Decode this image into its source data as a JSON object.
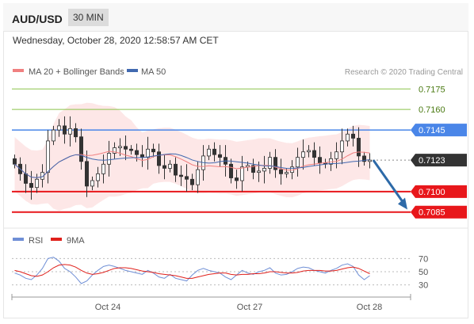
{
  "header": {
    "symbol": "AUD/USD",
    "timeframe": "30 MIN"
  },
  "datetime": "Wednesday, October 28, 2020 12:58:57 AM CET",
  "legend": {
    "ma20": "MA 20 + Bollinger Bands",
    "ma50": "MA 50"
  },
  "credit": "Research © 2020 Trading Central",
  "colors": {
    "ma20": "#f08080",
    "ma50": "#4169b0",
    "rsi": "#6f8fd6",
    "rsi_ma": "#e0201b",
    "green": "#8bc34a",
    "blue": "#4a86e8",
    "red": "#e8171b",
    "last": "#333333",
    "bands": "#fde3e3",
    "up": "#ffffff",
    "candle": "#333333",
    "arrow": "#2d6aa8"
  },
  "chart_data": {
    "type": "candlestick",
    "symbol": "AUD/USD",
    "interval": "30 MIN",
    "x_ticks": [
      "Oct 24",
      "Oct 27",
      "Oct 28"
    ],
    "y_range": [
      0.7075,
      0.7185
    ],
    "price_levels": [
      {
        "value": 0.7175,
        "label": "0.7175",
        "kind": "resistance-green"
      },
      {
        "value": 0.716,
        "label": "0.7160",
        "kind": "resistance-green"
      },
      {
        "value": 0.7145,
        "label": "0.7145",
        "kind": "pivot-blue"
      },
      {
        "value": 0.7123,
        "label": "0.7123",
        "kind": "last-price"
      },
      {
        "value": 0.71,
        "label": "0.7100",
        "kind": "support-red"
      },
      {
        "value": 0.7085,
        "label": "0.7085",
        "kind": "support-red"
      }
    ],
    "close_series": [
      0.712,
      0.7113,
      0.7106,
      0.7103,
      0.7109,
      0.7114,
      0.7137,
      0.7145,
      0.7148,
      0.7142,
      0.7146,
      0.714,
      0.7122,
      0.7104,
      0.7108,
      0.7113,
      0.712,
      0.7128,
      0.7132,
      0.7133,
      0.7131,
      0.713,
      0.7127,
      0.7125,
      0.7131,
      0.7129,
      0.7119,
      0.7117,
      0.712,
      0.7112,
      0.7111,
      0.7109,
      0.7105,
      0.7116,
      0.7126,
      0.7131,
      0.7127,
      0.7125,
      0.712,
      0.711,
      0.7108,
      0.7118,
      0.7119,
      0.7114,
      0.7115,
      0.7117,
      0.7125,
      0.7116,
      0.7113,
      0.7114,
      0.7118,
      0.7125,
      0.7129,
      0.713,
      0.7125,
      0.7121,
      0.712,
      0.7124,
      0.7129,
      0.7137,
      0.7142,
      0.7139,
      0.7126,
      0.7122,
      0.7123
    ],
    "rsi": {
      "name": "RSI",
      "ma_name": "9MA",
      "ticks": [
        70,
        50,
        30
      ],
      "y_range": [
        20,
        80
      ],
      "rsi_values": [
        48,
        45,
        40,
        38,
        45,
        55,
        70,
        72,
        66,
        55,
        50,
        42,
        32,
        36,
        45,
        52,
        58,
        60,
        58,
        55,
        52,
        50,
        48,
        46,
        52,
        48,
        42,
        40,
        46,
        40,
        38,
        36,
        45,
        52,
        55,
        52,
        50,
        48,
        42,
        38,
        45,
        52,
        48,
        46,
        50,
        52,
        56,
        48,
        45,
        46,
        50,
        55,
        57,
        56,
        52,
        50,
        48,
        52,
        55,
        60,
        62,
        58,
        45,
        38,
        44
      ],
      "ma_values": [
        52,
        50,
        47,
        44,
        43,
        45,
        50,
        56,
        60,
        61,
        60,
        57,
        52,
        48,
        46,
        47,
        49,
        52,
        55,
        56,
        56,
        55,
        53,
        51,
        50,
        49,
        47,
        46,
        45,
        44,
        42,
        40,
        40,
        42,
        44,
        46,
        47,
        48,
        48,
        46,
        45,
        46,
        46,
        47,
        47,
        48,
        50,
        50,
        49,
        48,
        48,
        49,
        51,
        52,
        52,
        52,
        51,
        51,
        52,
        54,
        56,
        57,
        55,
        51,
        47
      ]
    }
  }
}
